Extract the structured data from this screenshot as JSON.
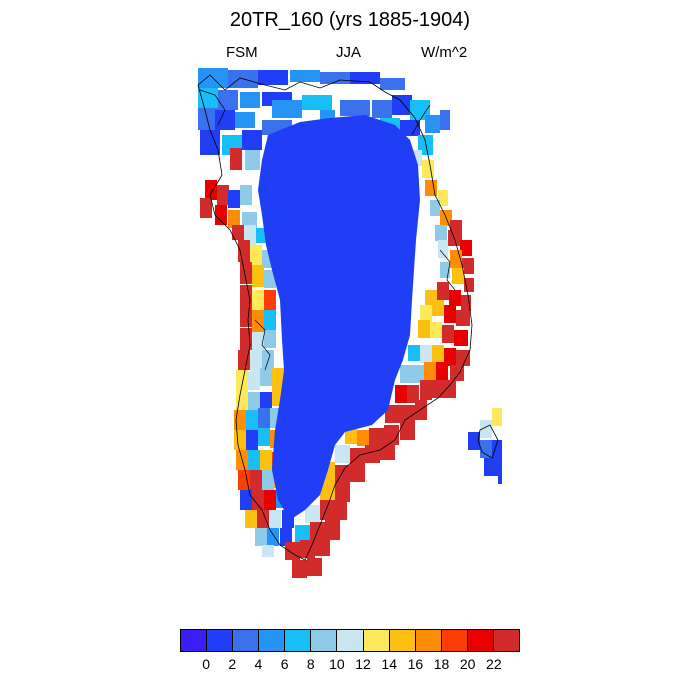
{
  "title": "20TR_160 (yrs 1885-1904)",
  "subtitle_left": "FSM",
  "subtitle_center": "JJA",
  "subtitle_right": "W/m^2",
  "colorbar": {
    "colors": [
      "#3b1ef5",
      "#1f3ef5",
      "#3a72ee",
      "#2694f6",
      "#18bff6",
      "#8ecbe8",
      "#c9e6f3",
      "#fde95a",
      "#fcc011",
      "#fd8d06",
      "#fc3d04",
      "#e60000",
      "#d22b2b"
    ],
    "labels": [
      "0",
      "2",
      "4",
      "6",
      "8",
      "10",
      "12",
      "14",
      "16",
      "18",
      "20",
      "22"
    ]
  },
  "map": {
    "background_color": "#ffffff",
    "ice_sheet_color": "#1f3ef5",
    "coastline_color": "#000000"
  }
}
